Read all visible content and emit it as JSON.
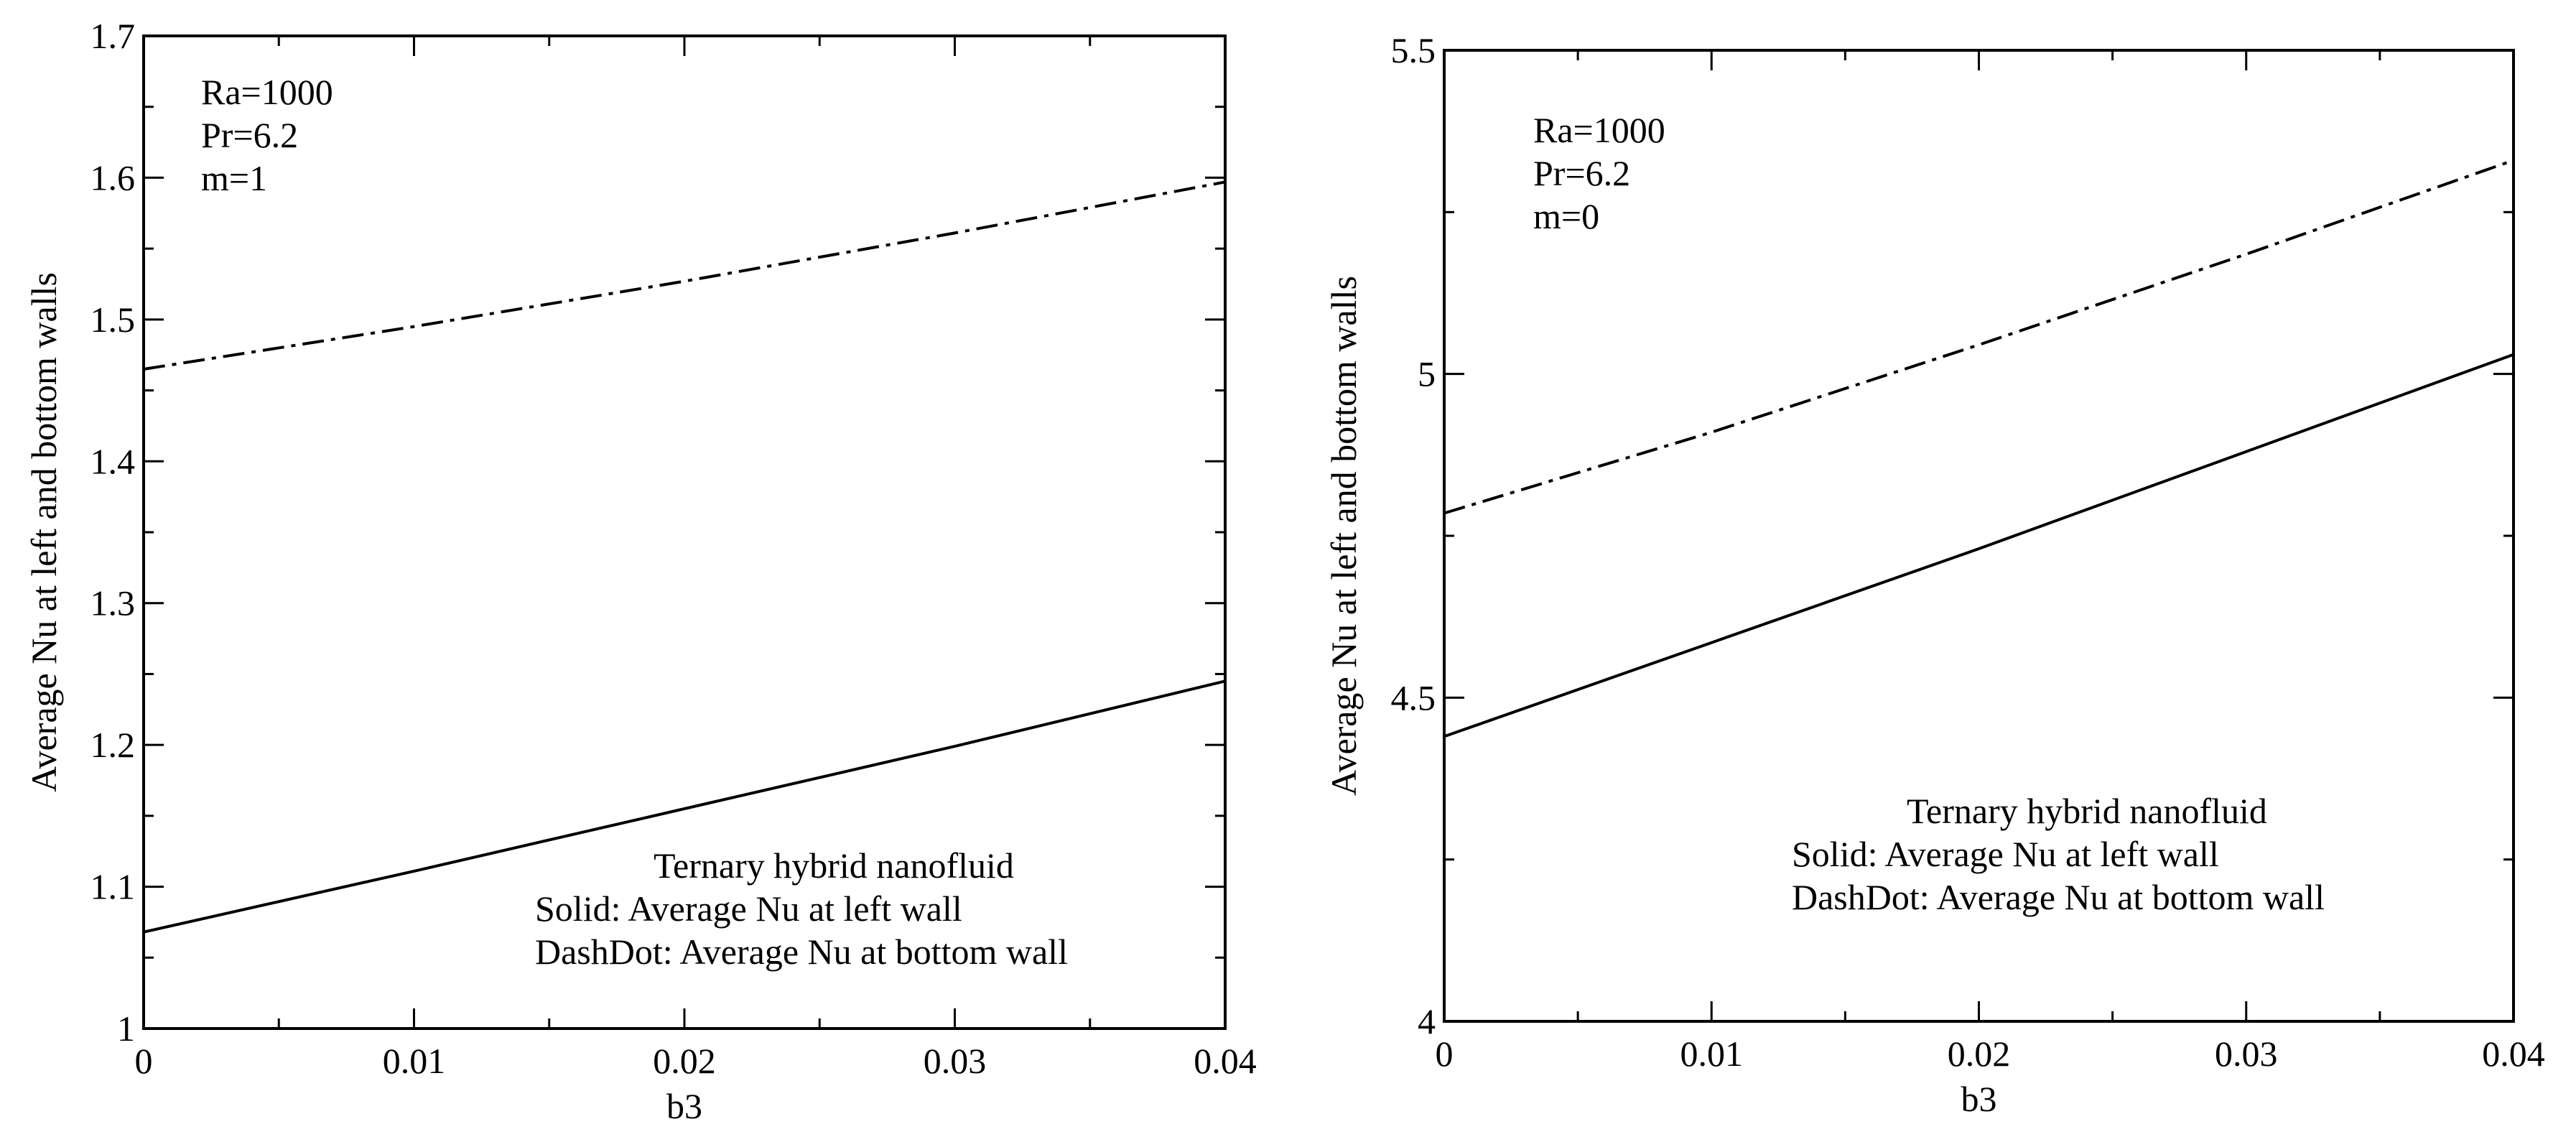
{
  "chart_data": [
    {
      "type": "line",
      "title": "",
      "xlabel": "b3",
      "ylabel": "Average Nu at left and bottom walls",
      "xlim": [
        0,
        0.04
      ],
      "ylim": [
        1,
        1.7
      ],
      "xticks": [
        0,
        0.01,
        0.02,
        0.03,
        0.04
      ],
      "xtick_labels": [
        "0",
        "0.01",
        "0.02",
        "0.03",
        "0.04"
      ],
      "yticks": [
        1,
        1.1,
        1.2,
        1.3,
        1.4,
        1.5,
        1.6,
        1.7
      ],
      "ytick_labels": [
        "1",
        "1.1",
        "1.2",
        "1.3",
        "1.4",
        "1.5",
        "1.6",
        "1.7"
      ],
      "params": [
        "Ra=1000",
        "Pr=6.2",
        "m=1"
      ],
      "legend": [
        "Ternary hybrid nanofluid",
        "Solid: Average Nu at left wall",
        "DashDot: Average Nu at bottom wall"
      ],
      "series": [
        {
          "name": "Average Nu at left wall",
          "style": "solid",
          "x": [
            0,
            0.01,
            0.02,
            0.03,
            0.04
          ],
          "y": [
            1.068,
            1.111,
            1.155,
            1.199,
            1.245
          ]
        },
        {
          "name": "Average Nu at bottom wall",
          "style": "dashdot",
          "x": [
            0,
            0.01,
            0.02,
            0.03,
            0.04
          ],
          "y": [
            1.465,
            1.495,
            1.527,
            1.561,
            1.597
          ]
        }
      ]
    },
    {
      "type": "line",
      "title": "",
      "xlabel": "b3",
      "ylabel": "Average Nu at left and bottom walls",
      "xlim": [
        0,
        0.04
      ],
      "ylim": [
        4,
        5.5
      ],
      "xticks": [
        0,
        0.01,
        0.02,
        0.03,
        0.04
      ],
      "xtick_labels": [
        "0",
        "0.01",
        "0.02",
        "0.03",
        "0.04"
      ],
      "yticks": [
        4,
        4.5,
        5,
        5.5
      ],
      "ytick_labels": [
        "4",
        "4.5",
        "5",
        "5.5"
      ],
      "params": [
        "Ra=1000",
        "Pr=6.2",
        "m=0"
      ],
      "legend": [
        "Ternary hybrid nanofluid",
        "Solid: Average Nu at left wall",
        "DashDot: Average Nu at bottom wall"
      ],
      "series": [
        {
          "name": "Average Nu at left wall",
          "style": "solid",
          "x": [
            0,
            0.01,
            0.02,
            0.03,
            0.04
          ],
          "y": [
            4.44,
            4.585,
            4.73,
            4.88,
            5.03
          ]
        },
        {
          "name": "Average Nu at bottom wall",
          "style": "dashdot",
          "x": [
            0,
            0.01,
            0.02,
            0.03,
            0.04
          ],
          "y": [
            4.785,
            4.91,
            5.045,
            5.185,
            5.33
          ]
        }
      ]
    }
  ]
}
